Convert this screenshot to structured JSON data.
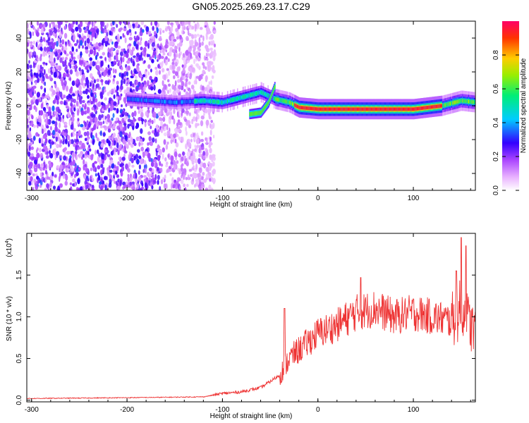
{
  "figure_title": "GN05.2025.269.23.17.C29",
  "chart_data": [
    {
      "type": "heatmap",
      "title": "GN05.2025.269.23.17.C29",
      "xlabel": "Height of straight line (km)",
      "ylabel": "Frequency (Hz)",
      "xlim": [
        -305,
        165
      ],
      "ylim": [
        -50,
        50
      ],
      "x_ticks": [
        -300,
        -200,
        -100,
        0,
        100
      ],
      "y_ticks": [
        -40,
        -20,
        0,
        20,
        40
      ],
      "colorbar": {
        "label": "Normalized spectral amplitude",
        "range": [
          0,
          1
        ],
        "ticks": [
          "0.0",
          "0.2",
          "0.4",
          "0.6",
          "0.8"
        ],
        "colors": [
          "#ffffff",
          "#cc66ff",
          "#4400ff",
          "#00ccff",
          "#00ff66",
          "#ffcc00",
          "#ff0033"
        ]
      },
      "features": {
        "noise_region_x": [
          -305,
          -120
        ],
        "main_ridge": [
          [
            -200,
            4
          ],
          [
            -150,
            2
          ],
          [
            -120,
            3
          ],
          [
            -100,
            2
          ],
          [
            -80,
            5
          ],
          [
            -60,
            8
          ],
          [
            -45,
            4
          ],
          [
            -30,
            2
          ],
          [
            -20,
            -1
          ],
          [
            0,
            -2
          ],
          [
            50,
            -2
          ],
          [
            100,
            -2
          ],
          [
            130,
            0
          ],
          [
            150,
            3
          ],
          [
            165,
            2
          ]
        ],
        "branch": [
          [
            -72,
            -5
          ],
          [
            -60,
            -4
          ],
          [
            -52,
            2
          ],
          [
            -45,
            12
          ]
        ]
      }
    },
    {
      "type": "line",
      "xlabel": "Height of straight line (km)",
      "ylabel": "SNR (10 * v/v)",
      "y_multiplier": "(x10",
      "y_multiplier_exp": "4",
      "xlim": [
        -305,
        165
      ],
      "ylim": [
        -0.02,
        2.0
      ],
      "x_ticks": [
        -300,
        -200,
        -100,
        0,
        100
      ],
      "y_ticks": [
        "0.0",
        "0.5",
        "1.0",
        "1.5"
      ],
      "y_tick_values": [
        0.0,
        0.5,
        1.0,
        1.5
      ],
      "series": [
        {
          "color": "#ee3333",
          "envelope": [
            [
              -305,
              0.02
            ],
            [
              -200,
              0.03
            ],
            [
              -120,
              0.04
            ],
            [
              -100,
              0.08
            ],
            [
              -80,
              0.1
            ],
            [
              -60,
              0.15
            ],
            [
              -40,
              0.3
            ],
            [
              -30,
              0.5
            ],
            [
              -20,
              0.6
            ],
            [
              -10,
              0.7
            ],
            [
              0,
              0.8
            ],
            [
              20,
              0.9
            ],
            [
              40,
              1.05
            ],
            [
              60,
              1.1
            ],
            [
              80,
              1.0
            ],
            [
              100,
              1.05
            ],
            [
              120,
              1.0
            ],
            [
              140,
              0.95
            ],
            [
              150,
              1.1
            ],
            [
              160,
              0.9
            ],
            [
              165,
              0.8
            ]
          ],
          "spikes": [
            [
              -35,
              1.1
            ],
            [
              45,
              1.47
            ],
            [
              145,
              1.55
            ],
            [
              150,
              1.95
            ],
            [
              155,
              1.85
            ]
          ]
        }
      ]
    }
  ]
}
